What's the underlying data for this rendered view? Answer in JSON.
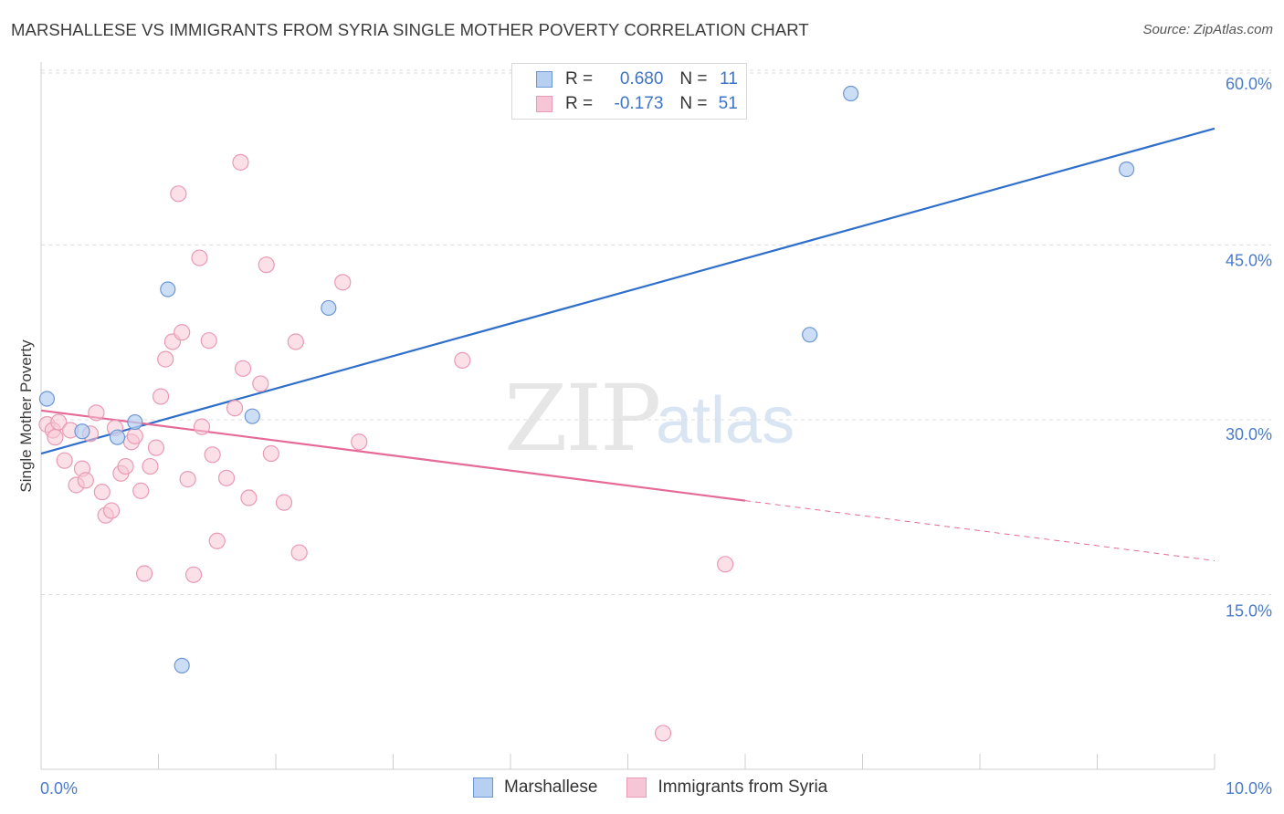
{
  "header": {
    "title": "MARSHALLESE VS IMMIGRANTS FROM SYRIA SINGLE MOTHER POVERTY CORRELATION CHART",
    "source": "Source: ZipAtlas.com"
  },
  "watermark": {
    "zip": "ZIP",
    "atlas": "atlas"
  },
  "legend": {
    "series1": {
      "r_label": "R =",
      "r_value": "0.680",
      "n_label": "N =",
      "n_value": "11"
    },
    "series2": {
      "r_label": "R =",
      "r_value": "-0.173",
      "n_label": "N =",
      "n_value": "51"
    },
    "bottom": [
      "Marshallese",
      "Immigrants from Syria"
    ]
  },
  "colors": {
    "blue_line": "#2f6fcc",
    "blue_fill": "#b7d0f1",
    "blue_stroke": "#6c97d4",
    "pink_line": "#e56a97",
    "pink_fill": "#f7c6d6",
    "pink_stroke": "#e99ab5",
    "grid": "#dddddd",
    "tick_text": "#4a7cc9"
  },
  "chart_data": {
    "type": "scatter",
    "title": "MARSHALLESE VS IMMIGRANTS FROM SYRIA SINGLE MOTHER POVERTY CORRELATION CHART",
    "xlabel": "",
    "ylabel": "Single Mother Poverty",
    "xlim": [
      0,
      10
    ],
    "ylim": [
      0,
      60
    ],
    "x_tick_labels": [
      "0.0%",
      "10.0%"
    ],
    "y_ticks": [
      15,
      30,
      45,
      60
    ],
    "y_tick_labels": [
      "15.0%",
      "30.0%",
      "45.0%",
      "60.0%"
    ],
    "grid": true,
    "legend_placement": "top-center",
    "series": [
      {
        "name": "Marshallese",
        "color": "#6c97d4",
        "points": [
          [
            0.05,
            31.8
          ],
          [
            0.35,
            29.0
          ],
          [
            0.65,
            28.5
          ],
          [
            0.8,
            29.8
          ],
          [
            1.08,
            41.2
          ],
          [
            1.2,
            8.9
          ],
          [
            1.8,
            30.3
          ],
          [
            2.45,
            39.6
          ],
          [
            6.55,
            37.3
          ],
          [
            6.9,
            58.0
          ],
          [
            9.25,
            51.5
          ]
        ],
        "trend": {
          "x": [
            0,
            10
          ],
          "y": [
            27.1,
            55.0
          ],
          "dashed_from": null
        }
      },
      {
        "name": "Immigrants from Syria",
        "color": "#e99ab5",
        "points": [
          [
            0.05,
            29.6
          ],
          [
            0.1,
            29.1
          ],
          [
            0.15,
            29.8
          ],
          [
            0.2,
            26.5
          ],
          [
            0.25,
            29.1
          ],
          [
            0.3,
            24.4
          ],
          [
            0.35,
            25.8
          ],
          [
            0.38,
            24.8
          ],
          [
            0.42,
            28.8
          ],
          [
            0.47,
            30.6
          ],
          [
            0.52,
            23.8
          ],
          [
            0.55,
            21.8
          ],
          [
            0.6,
            22.2
          ],
          [
            0.63,
            29.3
          ],
          [
            0.68,
            25.4
          ],
          [
            0.72,
            26.0
          ],
          [
            0.77,
            28.1
          ],
          [
            0.8,
            28.6
          ],
          [
            0.85,
            23.9
          ],
          [
            0.88,
            16.8
          ],
          [
            0.93,
            26.0
          ],
          [
            0.98,
            27.6
          ],
          [
            1.02,
            32.0
          ],
          [
            1.06,
            35.2
          ],
          [
            1.12,
            36.7
          ],
          [
            1.17,
            49.4
          ],
          [
            1.2,
            37.5
          ],
          [
            1.25,
            24.9
          ],
          [
            1.3,
            16.7
          ],
          [
            1.35,
            43.9
          ],
          [
            1.37,
            29.4
          ],
          [
            1.43,
            36.8
          ],
          [
            1.46,
            27.0
          ],
          [
            1.5,
            19.6
          ],
          [
            1.58,
            25.0
          ],
          [
            1.65,
            31.0
          ],
          [
            1.7,
            52.1
          ],
          [
            1.72,
            34.4
          ],
          [
            1.77,
            23.3
          ],
          [
            1.87,
            33.1
          ],
          [
            1.92,
            43.3
          ],
          [
            1.96,
            27.1
          ],
          [
            2.07,
            22.9
          ],
          [
            2.17,
            36.7
          ],
          [
            2.2,
            18.6
          ],
          [
            2.57,
            41.8
          ],
          [
            2.71,
            28.1
          ],
          [
            3.59,
            35.1
          ],
          [
            5.3,
            3.1
          ],
          [
            5.83,
            17.6
          ],
          [
            0.12,
            28.5
          ]
        ],
        "trend": {
          "x": [
            0,
            10
          ],
          "y": [
            30.8,
            17.9
          ],
          "dashed_from": 6.0
        }
      }
    ]
  }
}
